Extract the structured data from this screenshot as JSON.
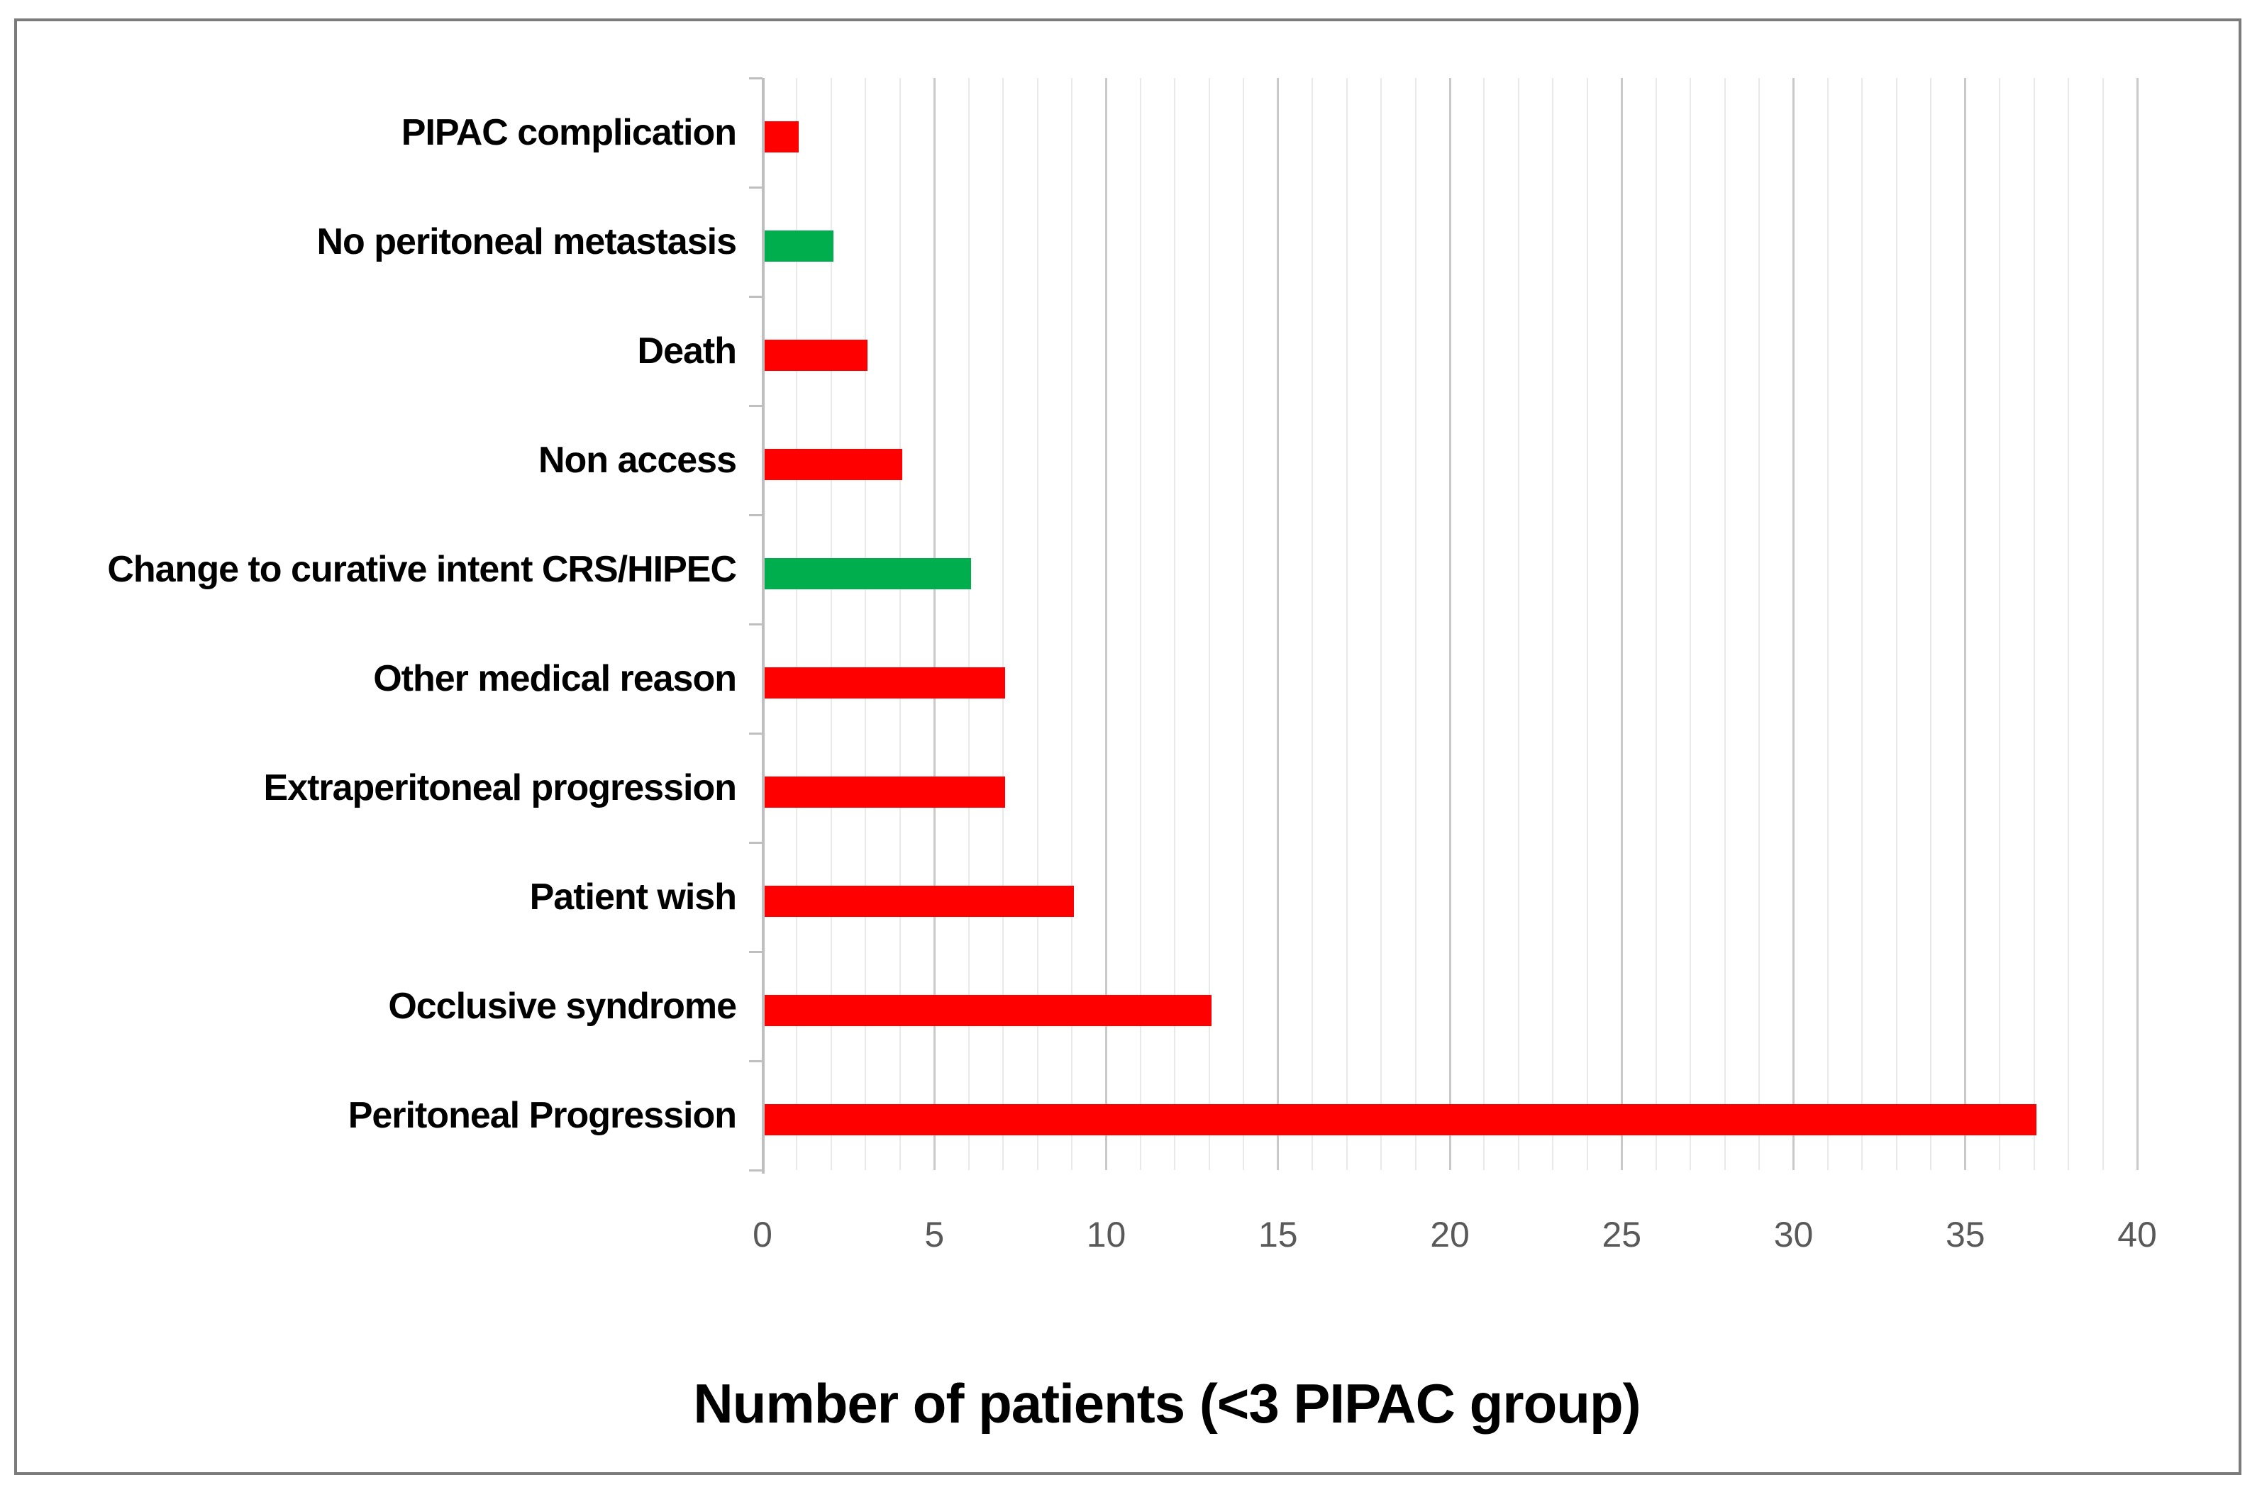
{
  "figure": {
    "background": "#ffffff",
    "border_color": "#7b7b7b"
  },
  "chart_data": {
    "type": "bar",
    "orientation": "horizontal",
    "title": "",
    "xlabel": "Number of patients (<3 PIPAC group)",
    "ylabel": "",
    "categories": [
      "PIPAC complication",
      "No peritoneal metastasis",
      "Death",
      "Non access",
      "Change to curative intent CRS/HIPEC",
      "Other medical reason",
      "Extraperitoneal progression",
      "Patient wish",
      "Occlusive syndrome",
      "Peritoneal Progression"
    ],
    "values": [
      1,
      2,
      3,
      4,
      6,
      7,
      7,
      9,
      13,
      37
    ],
    "bar_colors": [
      "#fe0000",
      "#00ae4e",
      "#fe0000",
      "#fe0000",
      "#00ae4e",
      "#fe0000",
      "#fe0000",
      "#fe0000",
      "#fe0000",
      "#fe0000"
    ],
    "xlim": [
      0,
      40
    ],
    "x_major_ticks": [
      0,
      5,
      10,
      15,
      20,
      25,
      30,
      35,
      40
    ],
    "x_minor_step": 1,
    "grid": "vertical, minor every 1 (light), major every 5 (darker)",
    "legend": "none",
    "style": {
      "red": "#fe0000",
      "green": "#00ae4e",
      "gridline_minor": "#e9e9e9",
      "gridline_major": "#c9c9c9",
      "axis_line": "#bfbfbf",
      "tick_label_color": "#595959",
      "category_label_color": "#000000",
      "title_color": "#000000"
    }
  }
}
